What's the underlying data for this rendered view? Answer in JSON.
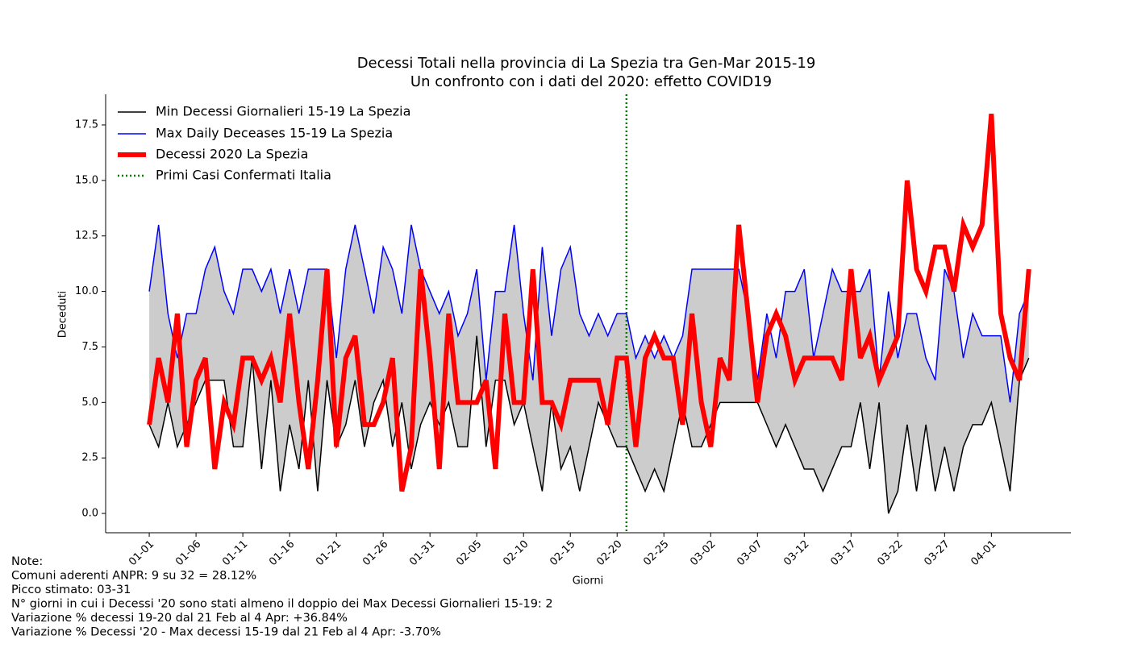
{
  "chart_data": {
    "type": "line",
    "title": "Decessi Totali nella provincia di La Spezia tra Gen-Mar 2015-19",
    "subtitle": "Un confronto con i dati del 2020: effetto COVID19",
    "xlabel": "Giorni",
    "ylabel": "Deceduti",
    "x": [
      0,
      1,
      2,
      3,
      4,
      5,
      6,
      7,
      8,
      9,
      10,
      11,
      12,
      13,
      14,
      15,
      16,
      17,
      18,
      19,
      20,
      21,
      22,
      23,
      24,
      25,
      26,
      27,
      28,
      29,
      30,
      31,
      32,
      33,
      34,
      35,
      36,
      37,
      38,
      39,
      40,
      41,
      42,
      43,
      44,
      45,
      46,
      47,
      48,
      49,
      50,
      51,
      52,
      53,
      54,
      55,
      56,
      57,
      58,
      59,
      60,
      61,
      62,
      63,
      64,
      65,
      66,
      67,
      68,
      69,
      70,
      71,
      72,
      73,
      74,
      75,
      76,
      77,
      78,
      79,
      80,
      81,
      82,
      83,
      84,
      85,
      86,
      87,
      88,
      89,
      90,
      91,
      92,
      93,
      94
    ],
    "xlim": [
      -4.66,
      98.5
    ],
    "xticks": [
      {
        "value": 0,
        "label": "01-01"
      },
      {
        "value": 5,
        "label": "01-06"
      },
      {
        "value": 10,
        "label": "01-11"
      },
      {
        "value": 15,
        "label": "01-16"
      },
      {
        "value": 20,
        "label": "01-21"
      },
      {
        "value": 25,
        "label": "01-26"
      },
      {
        "value": 30,
        "label": "01-31"
      },
      {
        "value": 35,
        "label": "02-05"
      },
      {
        "value": 40,
        "label": "02-10"
      },
      {
        "value": 45,
        "label": "02-15"
      },
      {
        "value": 50,
        "label": "02-20"
      },
      {
        "value": 55,
        "label": "02-25"
      },
      {
        "value": 60,
        "label": "03-02"
      },
      {
        "value": 65,
        "label": "03-07"
      },
      {
        "value": 70,
        "label": "03-12"
      },
      {
        "value": 75,
        "label": "03-17"
      },
      {
        "value": 80,
        "label": "03-22"
      },
      {
        "value": 85,
        "label": "03-27"
      },
      {
        "value": 90,
        "label": "04-01"
      }
    ],
    "ylim": [
      -0.87,
      18.88
    ],
    "yticks": [
      {
        "value": 0,
        "label": "0.0"
      },
      2.5,
      {
        "value": 5,
        "label": "5.0"
      },
      7.5,
      {
        "value": 10,
        "label": "10.0"
      },
      12.5,
      {
        "value": 15,
        "label": "15.0"
      },
      17.5
    ],
    "fill_color": "#cccccc",
    "series": [
      {
        "name": "Min Decessi Giornalieri 15-19 La Spezia",
        "color": "#000000",
        "width": 1.5,
        "values": [
          4,
          3,
          5,
          3,
          4,
          5,
          6,
          6,
          6,
          3,
          3,
          7,
          2,
          6,
          1,
          4,
          2,
          6,
          1,
          6,
          3,
          4,
          6,
          3,
          5,
          6,
          3,
          5,
          2,
          4,
          5,
          4,
          5,
          3,
          3,
          8,
          3,
          6,
          6,
          4,
          5,
          3,
          1,
          5,
          2,
          3,
          1,
          3,
          5,
          4,
          3,
          3,
          2,
          1,
          2,
          1,
          3,
          5,
          3,
          3,
          4,
          5,
          5,
          5,
          5,
          5,
          4,
          3,
          4,
          3,
          2,
          2,
          1,
          2,
          3,
          3,
          5,
          2,
          5,
          0,
          1,
          4,
          1,
          4,
          1,
          3,
          1,
          3,
          4,
          4,
          5,
          3,
          1,
          6,
          7
        ]
      },
      {
        "name": "Max Daily Deceases 15-19 La Spezia",
        "color": "#0000ff",
        "width": 1.5,
        "values": [
          10,
          13,
          9,
          7,
          9,
          9,
          11,
          12,
          10,
          9,
          11,
          11,
          10,
          11,
          9,
          11,
          9,
          11,
          11,
          11,
          7,
          11,
          13,
          11,
          9,
          12,
          11,
          9,
          13,
          11,
          10,
          9,
          10,
          8,
          9,
          11,
          6,
          10,
          10,
          13,
          9,
          6,
          12,
          8,
          11,
          12,
          9,
          8,
          9,
          8,
          9,
          9,
          7,
          8,
          7,
          8,
          7,
          8,
          11,
          11,
          11,
          11,
          11,
          11,
          9,
          6,
          9,
          7,
          10,
          10,
          11,
          7,
          9,
          11,
          10,
          10,
          10,
          11,
          6,
          10,
          7,
          9,
          9,
          7,
          6,
          11,
          10,
          7,
          9,
          8,
          8,
          8,
          5,
          9,
          10
        ]
      },
      {
        "name": "Decessi 2020 La Spezia",
        "color": "#ff0000",
        "width": 6,
        "values": [
          4,
          7,
          5,
          9,
          3,
          6,
          7,
          2,
          5,
          4,
          7,
          7,
          6,
          7,
          5,
          9,
          5,
          2,
          6,
          11,
          3,
          7,
          8,
          4,
          4,
          5,
          7,
          1,
          3,
          11,
          7,
          2,
          9,
          5,
          5,
          5,
          6,
          2,
          9,
          5,
          5,
          11,
          5,
          5,
          4,
          6,
          6,
          6,
          6,
          4,
          7,
          7,
          3,
          7,
          8,
          7,
          7,
          4,
          9,
          5,
          3,
          7,
          6,
          13,
          9,
          5,
          8,
          9,
          8,
          6,
          7,
          7,
          7,
          7,
          6,
          11,
          7,
          8,
          6,
          7,
          8,
          15,
          11,
          10,
          12,
          12,
          10,
          13,
          12,
          13,
          18,
          9,
          7,
          6,
          11
        ]
      }
    ],
    "vline": {
      "name": "Primi Casi Confermati Italia",
      "x": 51,
      "color": "#008000"
    },
    "legend": "upper left",
    "notes": [
      "Note:",
      "Comuni aderenti ANPR: 9 su 32 = 28.12%",
      "Picco stimato: 03-31",
      "N° giorni in cui i Decessi '20 sono stati almeno il doppio dei Max Decessi Giornalieri 15-19: 2",
      "Variazione % decessi 19-20 dal 21 Feb al 4 Apr: +36.84%",
      "Variazione % Decessi '20 - Max decessi 15-19 dal 21 Feb al 4 Apr:  -3.70%"
    ]
  }
}
